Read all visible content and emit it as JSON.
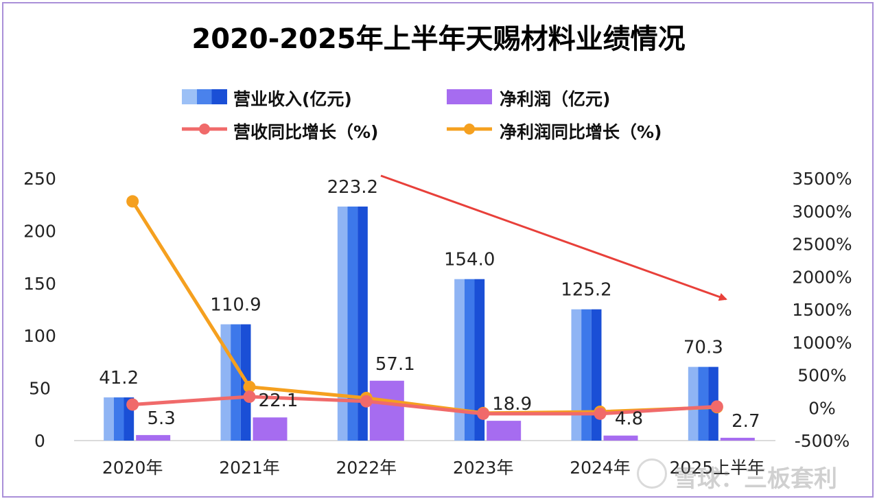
{
  "title": "2020-2025年上半年天赐材料业绩情况",
  "legend": {
    "revenue": "营业收入(亿元)",
    "profit": "净利润（亿元)",
    "revenue_growth": "营收同比增长（%)",
    "profit_growth": "净利润同比增长（%)"
  },
  "watermark": "雪球：三板套利",
  "colors": {
    "revenue_light": "#8fb4f4",
    "revenue_mid": "#3d78ea",
    "revenue_dark": "#1a4fd6",
    "profit": "#a66cf0",
    "revenue_growth": "#f06a6a",
    "profit_growth": "#f5a01f",
    "arrow": "#e8403a"
  },
  "chart_data": {
    "type": "bar",
    "categories": [
      "2020年",
      "2021年",
      "2022年",
      "2023年",
      "2024年",
      "2025上半年"
    ],
    "series": [
      {
        "name": "营业收入(亿元)",
        "axis": "left",
        "type": "bar",
        "values": [
          41.2,
          110.9,
          223.2,
          154.0,
          125.2,
          70.3
        ],
        "labels": [
          "41.2",
          "110.9",
          "223.2",
          "154.0",
          "125.2",
          "70.3"
        ]
      },
      {
        "name": "净利润（亿元)",
        "axis": "left",
        "type": "bar",
        "values": [
          5.3,
          22.1,
          57.1,
          18.9,
          4.8,
          2.7
        ],
        "labels": [
          "5.3",
          "22.1",
          "57.1",
          "18.9",
          "4.8",
          "2.7"
        ]
      },
      {
        "name": "营收同比增长（%)",
        "axis": "right",
        "type": "line",
        "values": [
          50,
          170,
          100,
          -90,
          -90,
          20
        ]
      },
      {
        "name": "净利润同比增长（%)",
        "axis": "right",
        "type": "line",
        "values": [
          3150,
          320,
          150,
          -80,
          -60,
          10
        ]
      }
    ],
    "left_axis": {
      "ylim": [
        0,
        250
      ],
      "ticks": [
        "0",
        "50",
        "100",
        "150",
        "200",
        "250"
      ]
    },
    "right_axis": {
      "ylim": [
        -500,
        3500
      ],
      "ticks": [
        "-500%",
        "0%",
        "500%",
        "1000%",
        "1500%",
        "2000%",
        "2500%",
        "3000%",
        "3500%"
      ]
    },
    "grid": false,
    "legend_position": "top"
  }
}
